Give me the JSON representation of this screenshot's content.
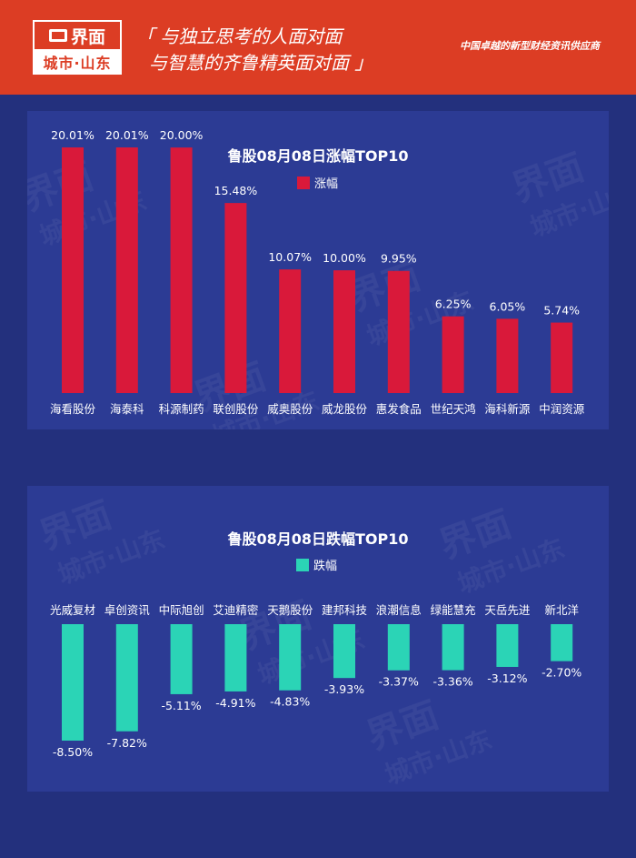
{
  "header": {
    "logo_name": "界面",
    "logo_sub": "城市·山东",
    "slogan_line1": "「 与独立思考的人面对面",
    "slogan_line2": "与智慧的齐鲁精英面对面 」",
    "tagline": "中国卓越的新型财经资讯供应商"
  },
  "colors": {
    "gain": "#d9193a",
    "loss": "#2bd4b6",
    "panel": "#2c3b94",
    "background": "#23307d",
    "header": "#dc3d24"
  },
  "chart_data": [
    {
      "type": "bar",
      "title": "鲁股08月08日涨幅TOP10",
      "legend": "涨幅",
      "categories": [
        "海看股份",
        "海泰科",
        "科源制药",
        "联创股份",
        "威奥股份",
        "威龙股份",
        "惠发食品",
        "世纪天鸿",
        "海科新源",
        "中润资源"
      ],
      "values": [
        20.01,
        20.01,
        20.0,
        15.48,
        10.07,
        10.0,
        9.95,
        6.25,
        6.05,
        5.74
      ],
      "labels": [
        "20.01%",
        "20.01%",
        "20.00%",
        "15.48%",
        "10.07%",
        "10.00%",
        "9.95%",
        "6.25%",
        "6.05%",
        "5.74%"
      ],
      "ylim": [
        0,
        20.01
      ]
    },
    {
      "type": "bar",
      "title": "鲁股08月08日跌幅TOP10",
      "legend": "跌幅",
      "categories": [
        "光威复材",
        "卓创资讯",
        "中际旭创",
        "艾迪精密",
        "天鹅股份",
        "建邦科技",
        "浪潮信息",
        "绿能慧充",
        "天岳先进",
        "新北洋"
      ],
      "values": [
        -8.5,
        -7.82,
        -5.11,
        -4.91,
        -4.83,
        -3.93,
        -3.37,
        -3.36,
        -3.12,
        -2.7
      ],
      "labels": [
        "-8.50%",
        "-7.82%",
        "-5.11%",
        "-4.91%",
        "-4.83%",
        "-3.93%",
        "-3.37%",
        "-3.36%",
        "-3.12%",
        "-2.70%"
      ],
      "ylim": [
        -8.5,
        0
      ]
    }
  ]
}
